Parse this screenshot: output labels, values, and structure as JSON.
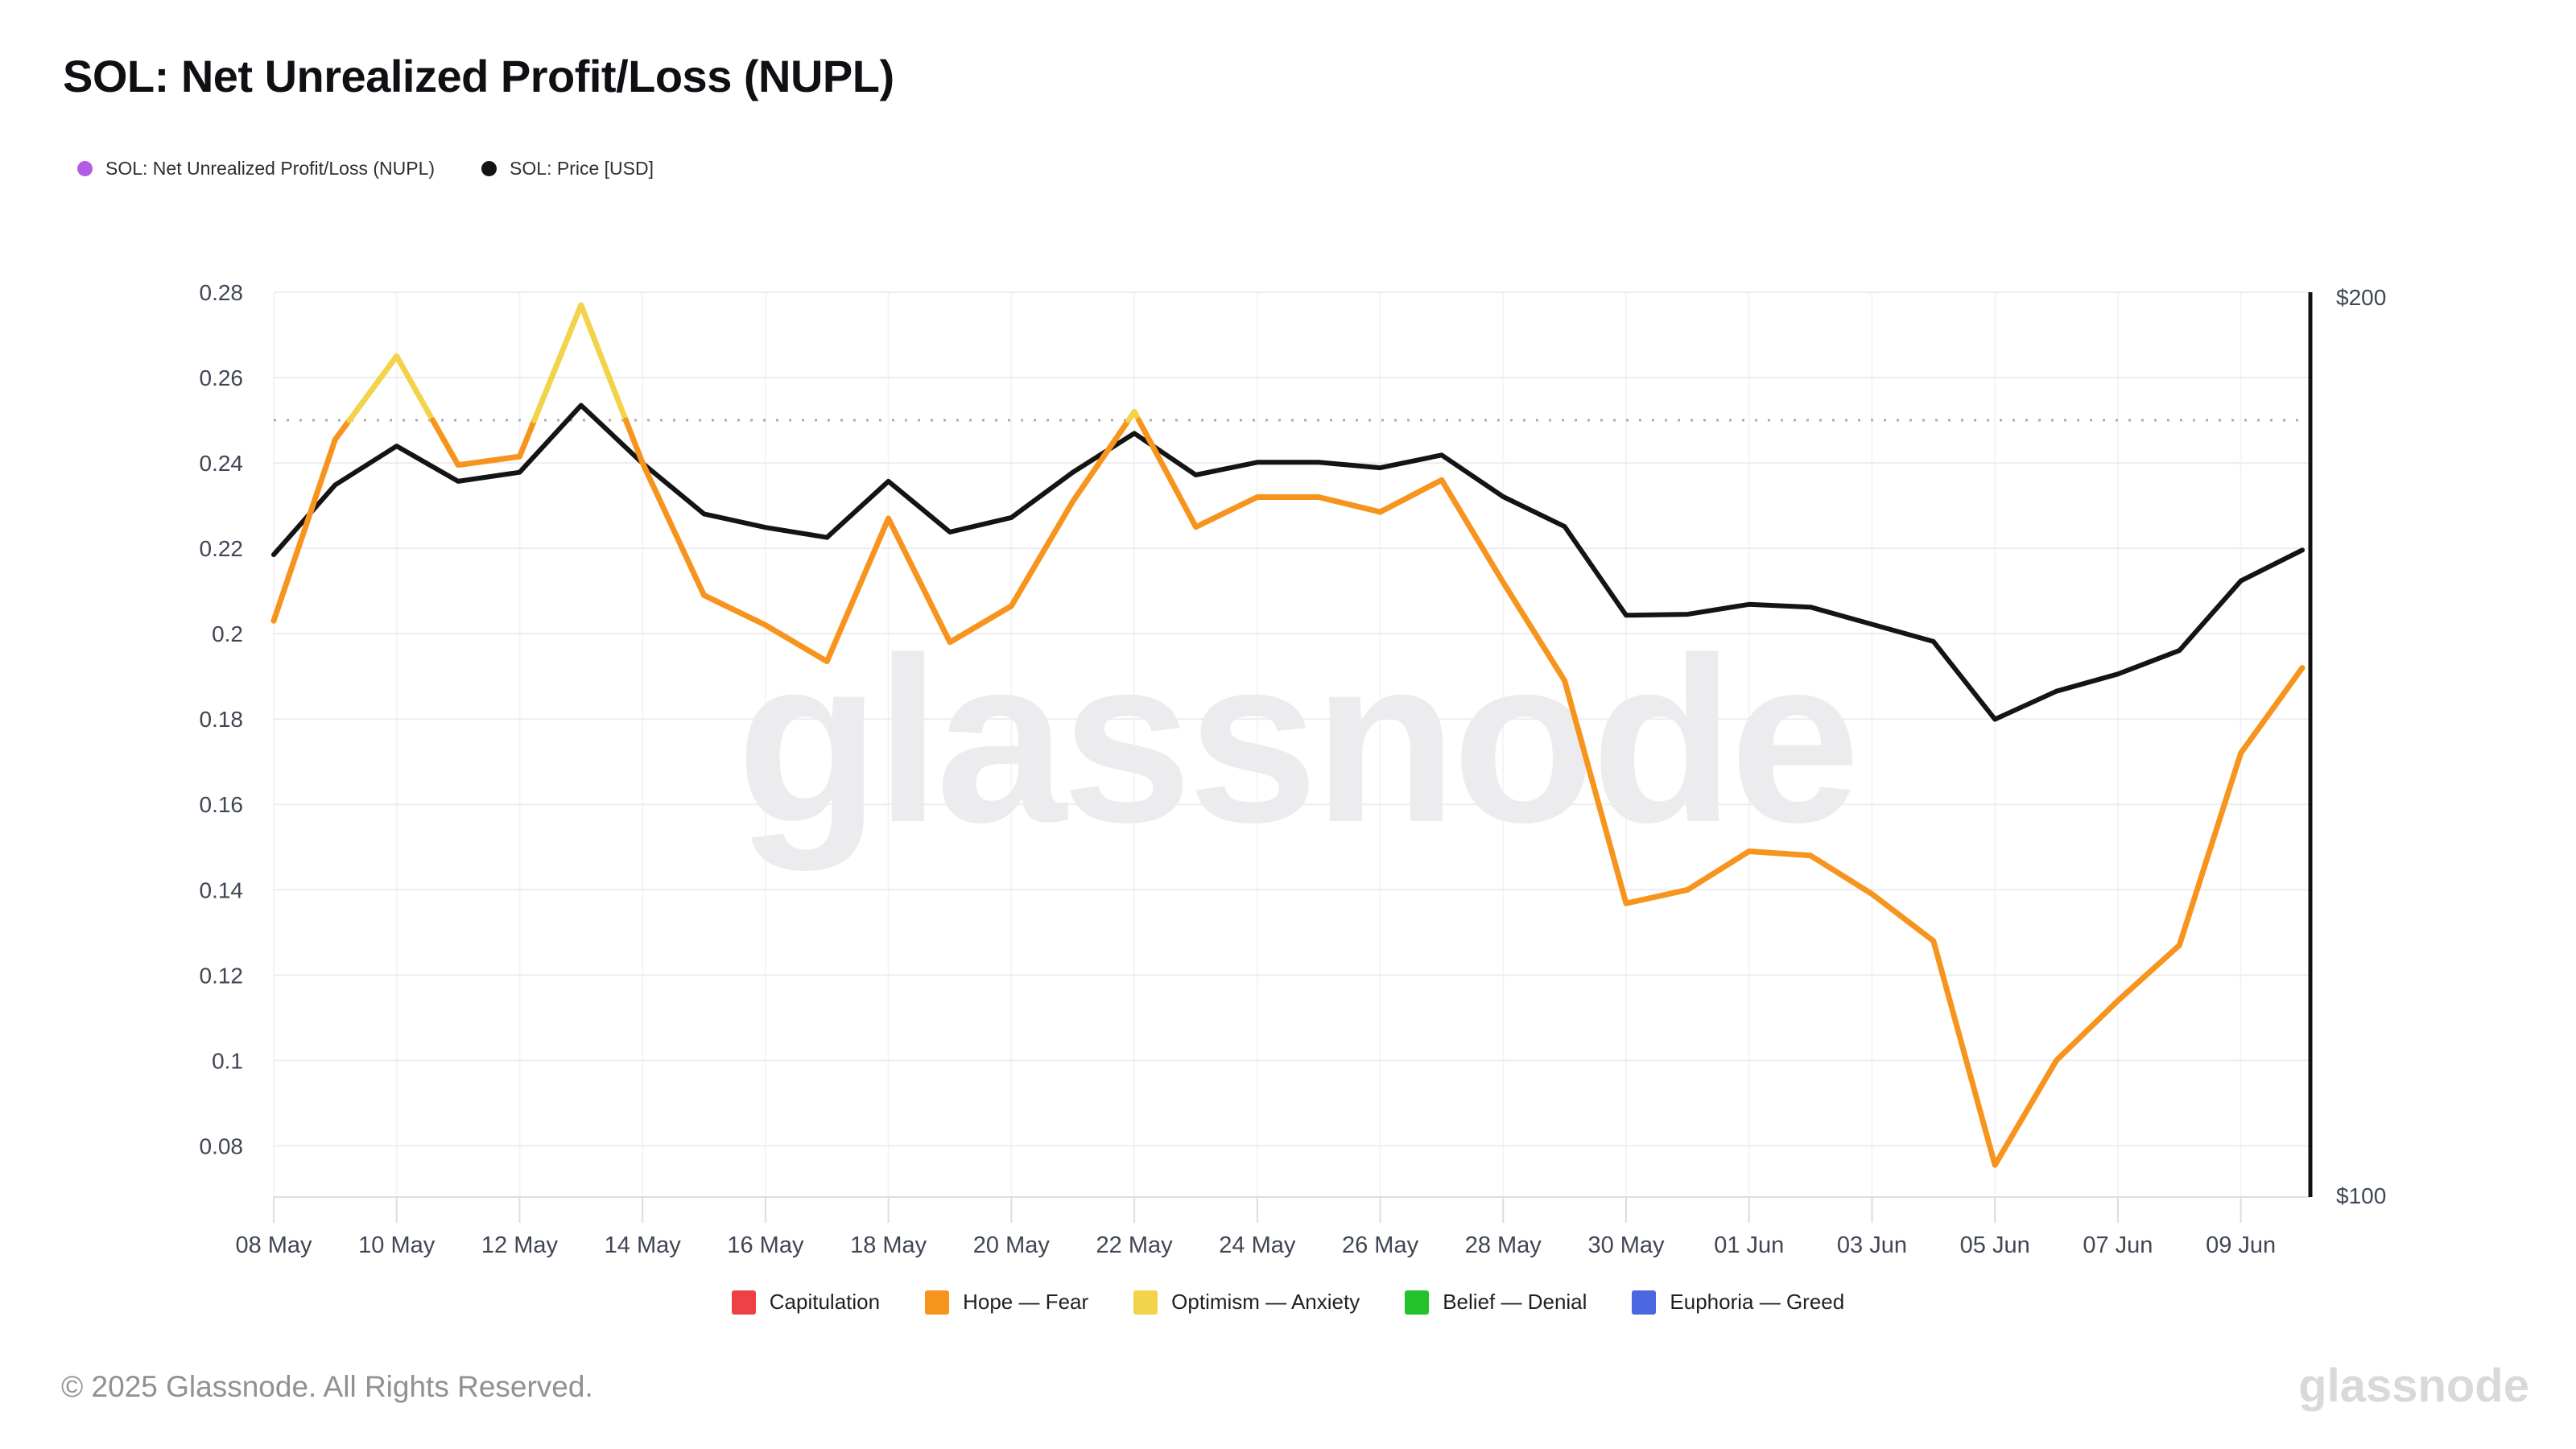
{
  "header": {
    "title": "SOL: Net Unrealized Profit/Loss (NUPL)",
    "series_legend": [
      {
        "label": "SOL: Net Unrealized Profit/Loss (NUPL)",
        "color": "#b55ce5"
      },
      {
        "label": "SOL: Price [USD]",
        "color": "#131316"
      }
    ]
  },
  "watermark": "glassnode",
  "footer": {
    "copyright": "© 2025 Glassnode. All Rights Reserved.",
    "logo": "glassnode"
  },
  "chart_data": {
    "type": "line",
    "title": "SOL: Net Unrealized Profit/Loss (NUPL)",
    "x_dates": [
      "08 May",
      "09 May",
      "10 May",
      "11 May",
      "12 May",
      "13 May",
      "14 May",
      "15 May",
      "16 May",
      "17 May",
      "18 May",
      "19 May",
      "20 May",
      "21 May",
      "22 May",
      "23 May",
      "24 May",
      "25 May",
      "26 May",
      "27 May",
      "28 May",
      "29 May",
      "30 May",
      "31 May",
      "01 Jun",
      "02 Jun",
      "03 Jun",
      "04 Jun",
      "05 Jun",
      "06 Jun",
      "07 Jun",
      "08 Jun",
      "09 Jun",
      "10 Jun"
    ],
    "x_tick_labels": [
      "08 May",
      "10 May",
      "12 May",
      "14 May",
      "16 May",
      "18 May",
      "20 May",
      "22 May",
      "24 May",
      "26 May",
      "28 May",
      "30 May",
      "01 Jun",
      "03 Jun",
      "05 Jun",
      "07 Jun",
      "09 Jun"
    ],
    "series": [
      {
        "name": "SOL: Net Unrealized Profit/Loss (NUPL)",
        "axis": "left",
        "color_below_threshold": "#f7941d",
        "color_above_threshold": "#f3d34a",
        "values": [
          0.203,
          0.2455,
          0.265,
          0.2395,
          0.2415,
          0.277,
          0.24,
          0.209,
          0.202,
          0.1935,
          0.227,
          0.198,
          0.2065,
          0.231,
          0.252,
          0.225,
          0.232,
          0.232,
          0.2285,
          0.236,
          0.212,
          0.189,
          0.1368,
          0.14,
          0.149,
          0.148,
          0.139,
          0.128,
          0.0755,
          0.1,
          0.114,
          0.127,
          0.172,
          0.192
        ]
      },
      {
        "name": "SOL: Price [USD]",
        "axis": "right",
        "color": "#141414",
        "values": [
          171.0,
          178.7,
          183.0,
          179.1,
          180.1,
          187.5,
          181.1,
          175.5,
          174.0,
          172.9,
          179.1,
          173.5,
          175.1,
          180.1,
          184.4,
          179.8,
          181.2,
          181.2,
          180.6,
          182.0,
          177.4,
          174.1,
          164.3,
          164.4,
          165.5,
          165.2,
          163.3,
          161.4,
          152.8,
          155.9,
          157.8,
          160.4,
          168.1,
          171.5
        ]
      }
    ],
    "y_axis_left": {
      "tick_labels": [
        "0.28",
        "0.26",
        "0.24",
        "0.22",
        "0.2",
        "0.18",
        "0.16",
        "0.14",
        "0.12",
        "0.1",
        "0.08"
      ],
      "tick_values": [
        0.28,
        0.26,
        0.24,
        0.22,
        0.2,
        0.18,
        0.16,
        0.14,
        0.12,
        0.1,
        0.08
      ],
      "range_top": 0.28,
      "range_bottom": 0.068
    },
    "y_axis_right": {
      "top_label": "$200",
      "bottom_label": "$100",
      "max": 200,
      "min": 100
    },
    "threshold_line": {
      "value": 0.25,
      "style": "dotted"
    },
    "grid": true,
    "legend_position": "bottom",
    "bands_legend": [
      {
        "label": "Capitulation",
        "color": "#ee4145"
      },
      {
        "label": "Hope — Fear",
        "color": "#f7941d"
      },
      {
        "label": "Optimism — Anxiety",
        "color": "#f3d34a"
      },
      {
        "label": "Belief — Denial",
        "color": "#22c32a"
      },
      {
        "label": "Euphoria — Greed",
        "color": "#4a67e0"
      }
    ]
  }
}
